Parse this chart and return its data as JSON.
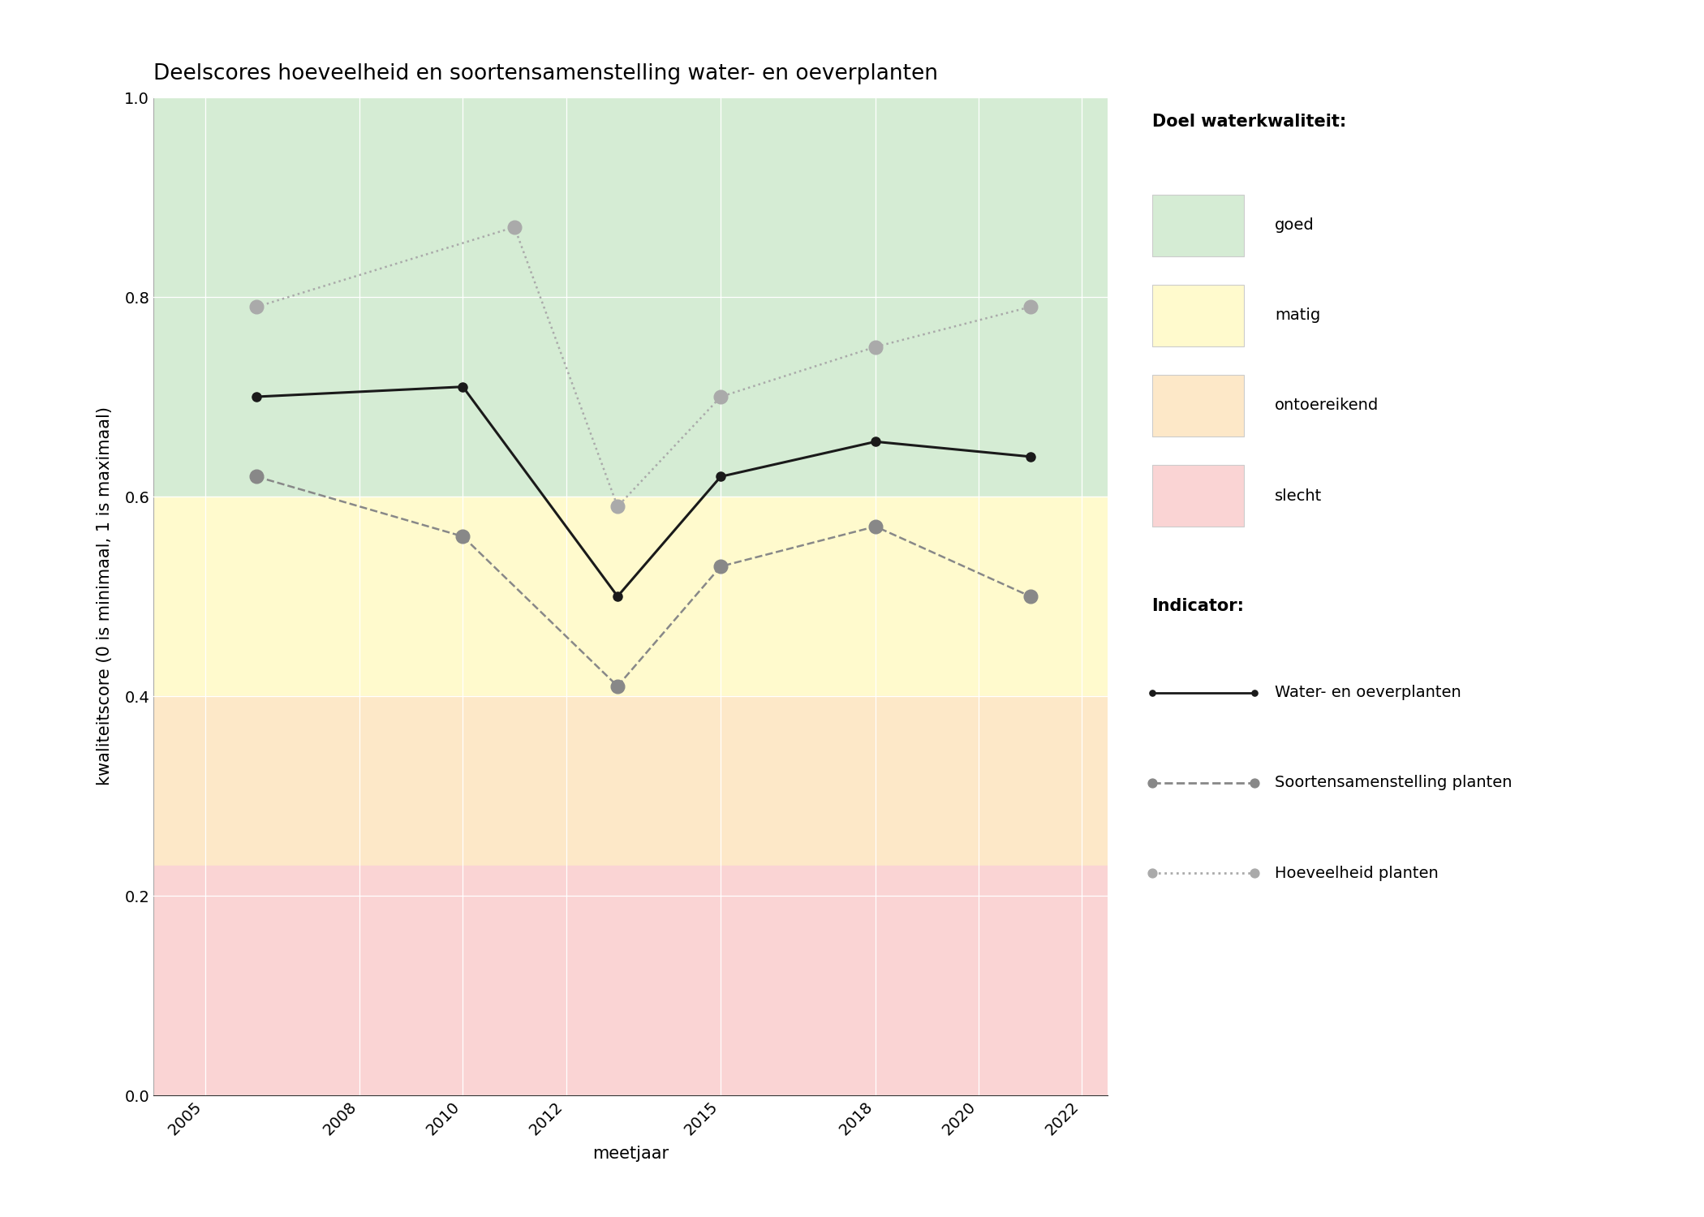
{
  "title": "Deelscores hoeveelheid en soortensamenstelling water- en oeverplanten",
  "xlabel": "meetjaar",
  "ylabel": "kwaliteitscore (0 is minimaal, 1 is maximaal)",
  "xlim": [
    2004.0,
    2022.5
  ],
  "ylim": [
    0.0,
    1.0
  ],
  "xticks": [
    2005,
    2008,
    2010,
    2012,
    2015,
    2018,
    2020,
    2022
  ],
  "yticks": [
    0.0,
    0.2,
    0.4,
    0.6,
    0.8,
    1.0
  ],
  "zone_good": {
    "ymin": 0.6,
    "ymax": 1.0,
    "color": "#d5ecd4",
    "alpha": 1.0,
    "label": "goed"
  },
  "zone_matig": {
    "ymin": 0.4,
    "ymax": 0.6,
    "color": "#fffacd",
    "alpha": 1.0,
    "label": "matig"
  },
  "zone_ontoereikend": {
    "ymin": 0.23,
    "ymax": 0.4,
    "color": "#fde8c8",
    "alpha": 1.0,
    "label": "ontoereikend"
  },
  "zone_slecht": {
    "ymin": 0.0,
    "ymax": 0.23,
    "color": "#fad4d4",
    "alpha": 1.0,
    "label": "slecht"
  },
  "line_water": {
    "x": [
      2006,
      2010,
      2013,
      2015,
      2018,
      2021
    ],
    "y": [
      0.7,
      0.71,
      0.5,
      0.62,
      0.655,
      0.64
    ],
    "color": "#1a1a1a",
    "linestyle": "-",
    "linewidth": 2.2,
    "marker": "o",
    "markersize": 8,
    "label": "Water- en oeverplanten"
  },
  "line_soorten": {
    "x": [
      2006,
      2010,
      2013,
      2015,
      2018,
      2021
    ],
    "y": [
      0.62,
      0.56,
      0.41,
      0.53,
      0.57,
      0.5
    ],
    "color": "#888888",
    "linestyle": "--",
    "linewidth": 1.8,
    "marker": "o",
    "markersize": 12,
    "label": "Soortensamenstelling planten"
  },
  "line_hoeveelheid": {
    "x": [
      2006,
      2011,
      2013,
      2015,
      2018,
      2021
    ],
    "y": [
      0.79,
      0.87,
      0.59,
      0.7,
      0.75,
      0.79
    ],
    "color": "#aaaaaa",
    "linestyle": ":",
    "linewidth": 1.8,
    "marker": "o",
    "markersize": 12,
    "label": "Hoeveelheid planten"
  },
  "legend_quality_title": "Doel waterkwaliteit:",
  "legend_indicator_title": "Indicator:",
  "legend_colors": {
    "goed": "#d5ecd4",
    "matig": "#fffacd",
    "ontoereikend": "#fde8c8",
    "slecht": "#fad4d4"
  },
  "title_fontsize": 19,
  "axis_label_fontsize": 15,
  "tick_fontsize": 14,
  "legend_fontsize": 14,
  "legend_title_fontsize": 15
}
